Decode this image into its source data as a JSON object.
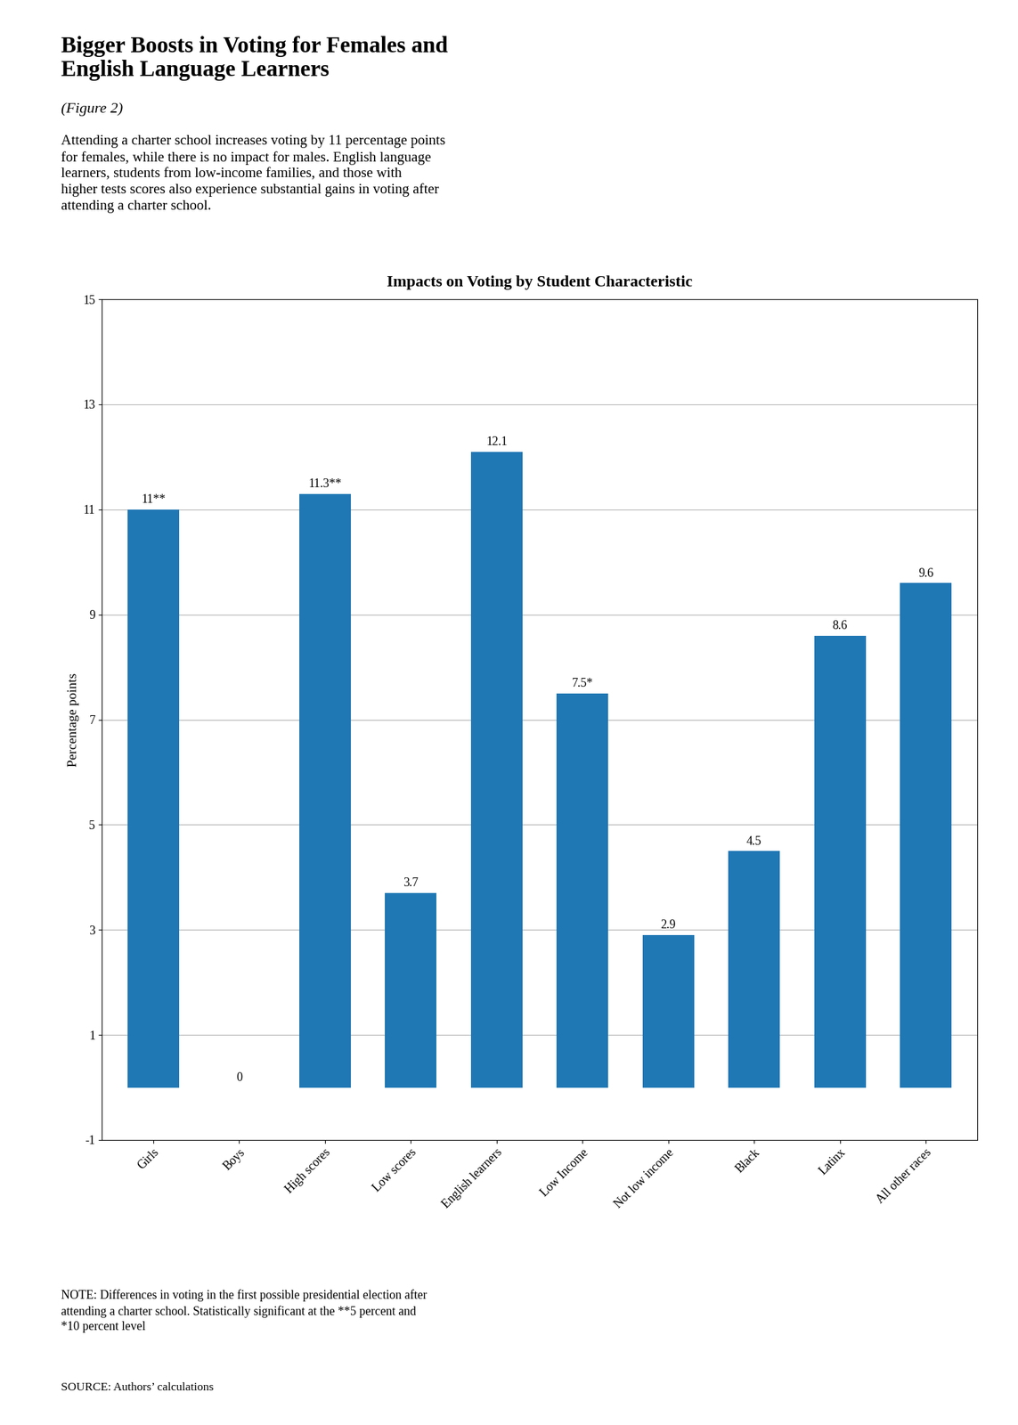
{
  "chart_data": {
    "type": "bar",
    "suptitle": "Bigger Boosts in Voting for Females and\nEnglish Language Learners",
    "suptitle_note": "(Figure 2)",
    "subtitle": "Attending a charter school increases voting by 11 percentage points\nfor females, while there is no impact for males. English language\nlearners, students from low-income families, and those with\nhigher tests scores also experience substantial gains in voting after\nattending a charter school.",
    "title": "Impacts on Voting by Student Characteristic",
    "categories": [
      "Girls",
      "Boys",
      "High scores",
      "Low scores",
      "English learners",
      "Low Income",
      "Not low income",
      "Black",
      "Latinx",
      "All other races"
    ],
    "values": [
      11.0,
      0.0,
      11.3,
      3.7,
      12.1,
      7.5,
      2.9,
      4.5,
      8.6,
      9.6
    ],
    "value_labels": [
      "11**",
      "0",
      "11.3**",
      "3.7",
      "12.1",
      "7.5*",
      "2.9",
      "4.5",
      "8.6",
      "9.6"
    ],
    "data_labels": true,
    "ylabel": "Percentage points",
    "ylim": [
      -1,
      15
    ],
    "yticks": [
      -1,
      1,
      3,
      5,
      7,
      9,
      11,
      13,
      15
    ],
    "grid": true,
    "note": "NOTE: Differences in voting in the first possible presidential election after\nattending a charter school. Statistically significant at the **5 percent and\n*10 percent level",
    "source": "SOURCE: Authors’ calculations"
  }
}
